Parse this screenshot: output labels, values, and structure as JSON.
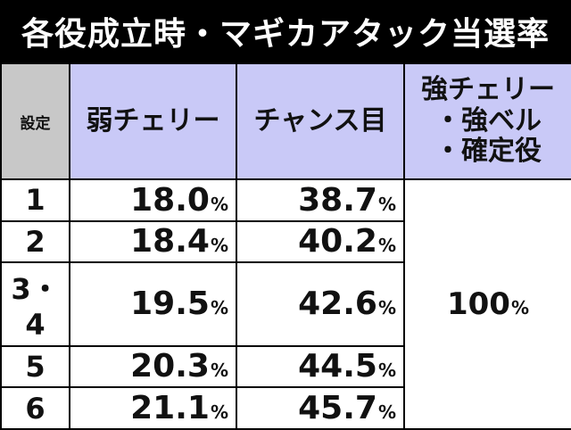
{
  "title": "各役成立時・マギカアタック当選率",
  "headers": {
    "setting": "設定",
    "weak_cherry": "弱チェリー",
    "chance_eye": "チャンス目",
    "strong": [
      "強チェリー",
      "・強ベル",
      "・確定役"
    ]
  },
  "rows": [
    {
      "setting": "1",
      "weak_cherry": "18.0",
      "chance_eye": "38.7"
    },
    {
      "setting": "2",
      "weak_cherry": "18.4",
      "chance_eye": "40.2"
    },
    {
      "setting": "3・4",
      "weak_cherry": "19.5",
      "chance_eye": "42.6"
    },
    {
      "setting": "5",
      "weak_cherry": "20.3",
      "chance_eye": "44.5"
    },
    {
      "setting": "6",
      "weak_cherry": "21.1",
      "chance_eye": "45.7"
    }
  ],
  "strong_value": "100",
  "unit": "%",
  "colors": {
    "header_setting_bg": "#c8c8c8",
    "header_bg": "#c9c9f7",
    "title_bg": "#000000"
  }
}
